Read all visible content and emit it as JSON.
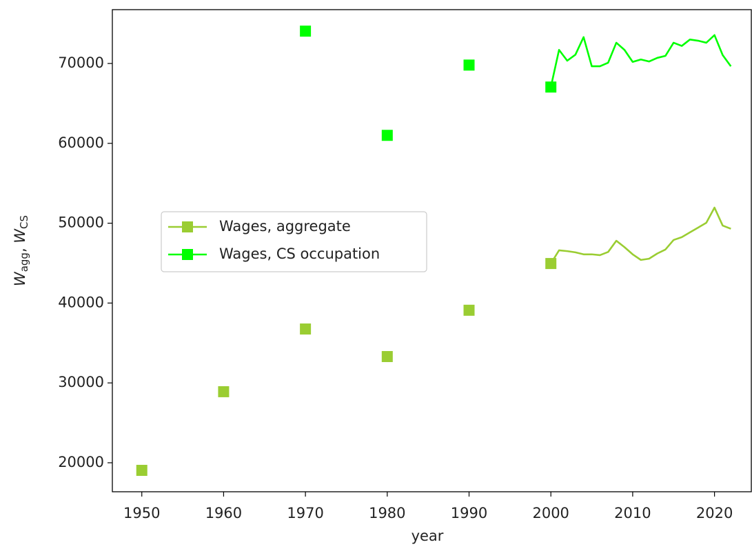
{
  "chart_data": {
    "type": "line",
    "xlabel": "year",
    "ylabel": [
      {
        "symbol": "W",
        "subscript": "agg"
      },
      {
        "symbol": "W",
        "subscript": "CS"
      }
    ],
    "ylabel_separator": ", ",
    "xlim": [
      1946.4,
      2024.5
    ],
    "ylim": [
      16370,
      76740
    ],
    "xticks": [
      1950,
      1960,
      1970,
      1980,
      1990,
      2000,
      2010,
      2020
    ],
    "yticks": [
      20000,
      30000,
      40000,
      50000,
      60000,
      70000
    ],
    "legend": "center left",
    "series": [
      {
        "name": "Wages, aggregate",
        "color": "#9acd32",
        "marker_x": [
          1950,
          1960,
          1970,
          1980,
          1990,
          2000
        ],
        "marker_values": [
          19050,
          28900,
          36750,
          33300,
          39100,
          44950
        ],
        "x": [
          2000,
          2001,
          2002,
          2003,
          2004,
          2005,
          2006,
          2007,
          2008,
          2009,
          2010,
          2011,
          2012,
          2013,
          2014,
          2015,
          2016,
          2017,
          2018,
          2019,
          2020,
          2021,
          2022
        ],
        "values": [
          44950,
          46600,
          46500,
          46350,
          46100,
          46100,
          46000,
          46400,
          47800,
          47000,
          46100,
          45400,
          45550,
          46200,
          46700,
          47900,
          48250,
          48850,
          49450,
          50050,
          51950,
          49700,
          49300
        ]
      },
      {
        "name": "Wages, CS occupation",
        "color": "#00ff00",
        "marker_x": [
          1970,
          1980,
          1990,
          2000
        ],
        "marker_values": [
          74050,
          61000,
          69800,
          67050
        ],
        "x": [
          2000,
          2001,
          2002,
          2003,
          2004,
          2005,
          2006,
          2007,
          2008,
          2009,
          2010,
          2011,
          2012,
          2013,
          2014,
          2015,
          2016,
          2017,
          2018,
          2019,
          2020,
          2021,
          2022
        ],
        "values": [
          67060,
          71700,
          70350,
          71100,
          73300,
          69650,
          69650,
          70100,
          72600,
          71700,
          70200,
          70500,
          70250,
          70700,
          70950,
          72600,
          72200,
          73000,
          72850,
          72600,
          73550,
          71050,
          69650
        ]
      }
    ]
  }
}
